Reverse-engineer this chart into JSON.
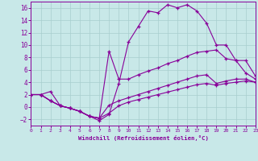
{
  "xlabel": "Windchill (Refroidissement éolien,°C)",
  "bg_color": "#c8e8e8",
  "grid_color": "#a8cece",
  "line_color": "#880099",
  "xlim": [
    0,
    23
  ],
  "ylim": [
    -3,
    17
  ],
  "xticks": [
    0,
    1,
    2,
    3,
    4,
    5,
    6,
    7,
    8,
    9,
    10,
    11,
    12,
    13,
    14,
    15,
    16,
    17,
    18,
    19,
    20,
    21,
    22,
    23
  ],
  "yticks": [
    -2,
    0,
    2,
    4,
    6,
    8,
    10,
    12,
    14,
    16
  ],
  "curve1_x": [
    0,
    1,
    2,
    3,
    4,
    5,
    6,
    7,
    8,
    9,
    10,
    11,
    12,
    13,
    14,
    15,
    16,
    17,
    18,
    19,
    20,
    21,
    22,
    23
  ],
  "curve1_y": [
    2.0,
    2.0,
    2.5,
    0.2,
    -0.2,
    -0.7,
    -1.5,
    -2.2,
    -1.2,
    3.8,
    10.5,
    13.0,
    15.5,
    15.2,
    16.5,
    16.0,
    16.5,
    15.5,
    13.5,
    10.0,
    10.0,
    7.5,
    7.5,
    5.0
  ],
  "curve2_x": [
    0,
    1,
    2,
    3,
    4,
    5,
    6,
    7,
    8,
    9,
    10,
    11,
    12,
    13,
    14,
    15,
    16,
    17,
    18,
    19,
    20,
    21,
    22,
    23
  ],
  "curve2_y": [
    2.0,
    2.0,
    1.0,
    0.2,
    -0.2,
    -0.7,
    -1.5,
    -1.8,
    9.0,
    4.5,
    4.5,
    5.2,
    5.8,
    6.3,
    7.0,
    7.5,
    8.2,
    8.8,
    9.0,
    9.2,
    7.8,
    7.5,
    5.5,
    4.5
  ],
  "curve3_x": [
    0,
    1,
    2,
    3,
    4,
    5,
    6,
    7,
    8,
    9,
    10,
    11,
    12,
    13,
    14,
    15,
    16,
    17,
    18,
    19,
    20,
    21,
    22,
    23
  ],
  "curve3_y": [
    2.0,
    2.0,
    1.0,
    0.2,
    -0.2,
    -0.7,
    -1.5,
    -1.8,
    0.3,
    1.0,
    1.5,
    2.0,
    2.5,
    3.0,
    3.5,
    4.0,
    4.5,
    5.0,
    5.2,
    3.8,
    4.2,
    4.5,
    4.5,
    4.0
  ],
  "curve4_x": [
    0,
    1,
    2,
    3,
    4,
    5,
    6,
    7,
    8,
    9,
    10,
    11,
    12,
    13,
    14,
    15,
    16,
    17,
    18,
    19,
    20,
    21,
    22,
    23
  ],
  "curve4_y": [
    2.0,
    2.0,
    1.0,
    0.2,
    -0.2,
    -0.7,
    -1.5,
    -1.8,
    -1.0,
    0.2,
    0.8,
    1.2,
    1.6,
    2.0,
    2.4,
    2.8,
    3.2,
    3.6,
    3.8,
    3.5,
    3.8,
    4.0,
    4.2,
    4.0
  ]
}
